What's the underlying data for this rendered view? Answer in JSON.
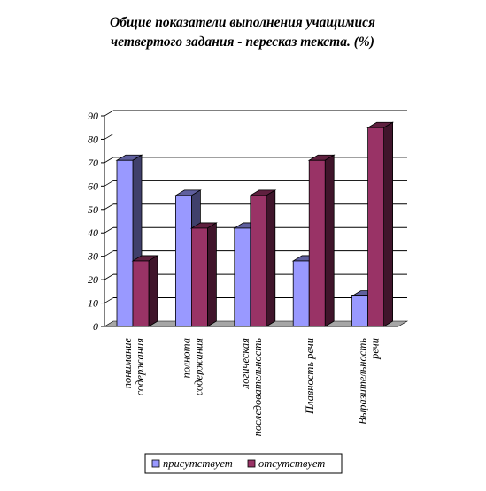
{
  "chart_data": {
    "type": "bar",
    "title": [
      "Общие показатели выполнения учащимися",
      "четвертого задания - пересказ текста.  (%)"
    ],
    "categories": [
      [
        "понимание",
        "содержания"
      ],
      [
        "полнота",
        "содержания"
      ],
      [
        "логическая",
        "последовательность"
      ],
      [
        "Плавность речи"
      ],
      [
        "Выразительность",
        "речи"
      ]
    ],
    "series": [
      {
        "name": "присутствует",
        "color": "#9999ff",
        "values": [
          71,
          56,
          42,
          28,
          13
        ]
      },
      {
        "name": "отсутствует",
        "color": "#993366",
        "values": [
          28,
          42,
          56,
          71,
          85
        ]
      }
    ],
    "ylim": [
      0,
      90
    ],
    "yticks": [
      0,
      10,
      20,
      30,
      40,
      50,
      60,
      70,
      80,
      90
    ],
    "grid": true,
    "legend_position": "bottom"
  }
}
